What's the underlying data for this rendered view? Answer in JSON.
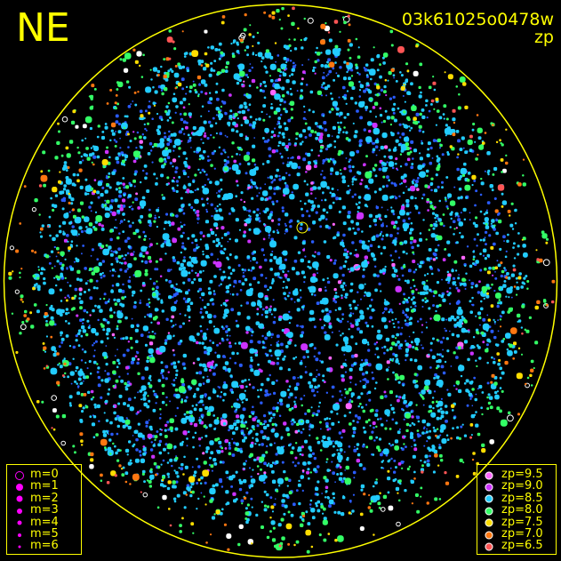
{
  "header": {
    "direction": "NE",
    "frame_id": "03k61025o0478w",
    "mode": "zp"
  },
  "chart_data": {
    "type": "scatter",
    "title": "",
    "description_note": "All-sky camera frame with stars color-coded by zero point and sized by magnitude",
    "boundary_color": "#ffff00",
    "background": "#000000",
    "magnitude_legend": [
      {
        "label": "m=0",
        "m": 0,
        "style": "ring",
        "color": "#ff00ff"
      },
      {
        "label": "m=1",
        "m": 1,
        "style": "filled",
        "color": "#ff00ff"
      },
      {
        "label": "m=2",
        "m": 2,
        "style": "filled",
        "color": "#ff00ff"
      },
      {
        "label": "m=3",
        "m": 3,
        "style": "filled",
        "color": "#ff00ff"
      },
      {
        "label": "m=4",
        "m": 4,
        "style": "filled",
        "color": "#ff00ff"
      },
      {
        "label": "m=5",
        "m": 5,
        "style": "filled",
        "color": "#ff00ff"
      },
      {
        "label": "m=6",
        "m": 6,
        "style": "filled",
        "color": "#ff00ff"
      }
    ],
    "zp_legend": [
      {
        "label": "zp=9.5",
        "zp": 9.5,
        "color": "#ff66ff"
      },
      {
        "label": "zp=9.0",
        "zp": 9.0,
        "color": "#cc33ff"
      },
      {
        "label": "zp=8.5",
        "zp": 8.5,
        "color": "#22ccff"
      },
      {
        "label": "zp=8.0",
        "zp": 8.0,
        "color": "#33ff66"
      },
      {
        "label": "zp=7.5",
        "zp": 7.5,
        "color": "#ffdd00"
      },
      {
        "label": "zp=7.0",
        "zp": 7.0,
        "color": "#ff7711"
      },
      {
        "label": "zp=6.5",
        "zp": 6.5,
        "color": "#ff5555"
      }
    ],
    "series": [
      {
        "zp": 9.5,
        "color": "#ff66ff",
        "count": 60
      },
      {
        "zp": 9.0,
        "color": "#cc33ff",
        "count": 260
      },
      {
        "zp": 8.5,
        "color": "#22ccff",
        "count": 2600
      },
      {
        "zp": 8.0,
        "color": "#33ff66",
        "count": 650
      },
      {
        "zp": 7.5,
        "color": "#ffdd00",
        "count": 120
      },
      {
        "zp": 7.0,
        "color": "#ff7711",
        "count": 110
      },
      {
        "zp": 6.5,
        "color": "#ff5555",
        "count": 30
      }
    ],
    "extra_series": [
      {
        "name": "blue",
        "color": "#2a5cff",
        "count": 1500
      },
      {
        "name": "unmatched",
        "color": "#ffffff",
        "count": 35
      }
    ]
  }
}
